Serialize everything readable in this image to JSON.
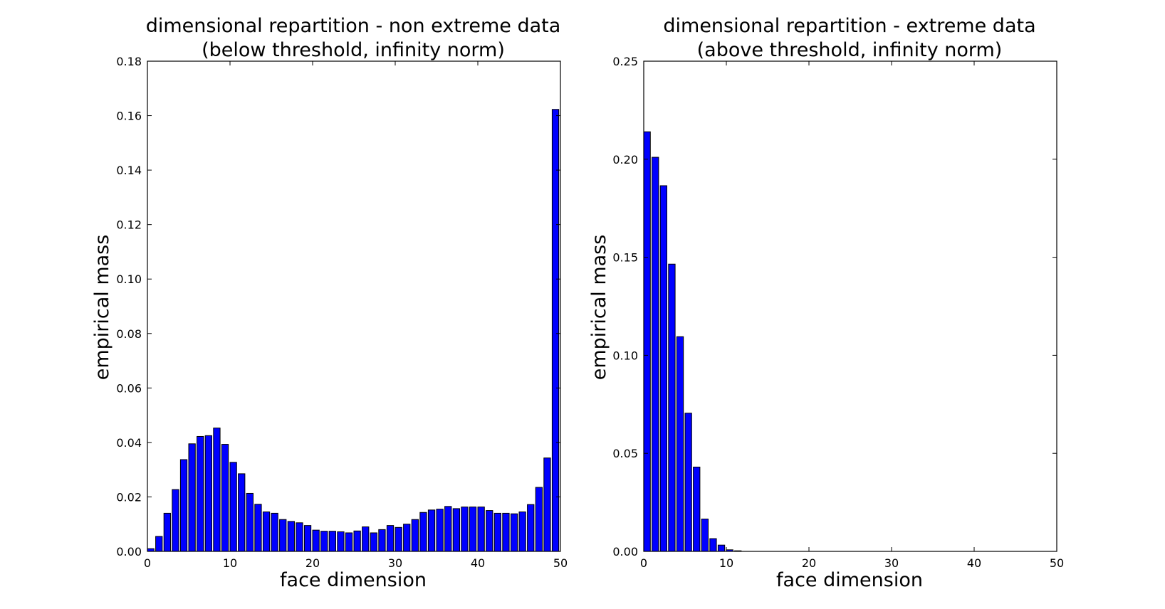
{
  "chart_data": [
    {
      "type": "bar",
      "title_line1": "dimensional repartition - non extreme data",
      "title_line2": "(below threshold, infinity norm)",
      "xlabel": "face dimension",
      "ylabel": "empirical mass",
      "xlim": [
        0,
        50
      ],
      "ylim": [
        0,
        0.18
      ],
      "xticks": [
        "0",
        "10",
        "20",
        "30",
        "40",
        "50"
      ],
      "yticks": [
        "0.00",
        "0.02",
        "0.04",
        "0.06",
        "0.08",
        "0.10",
        "0.12",
        "0.14",
        "0.16",
        "0.18"
      ],
      "bar_color": "#0000ff",
      "x": [
        0,
        1,
        2,
        3,
        4,
        5,
        6,
        7,
        8,
        9,
        10,
        11,
        12,
        13,
        14,
        15,
        16,
        17,
        18,
        19,
        20,
        21,
        22,
        23,
        24,
        25,
        26,
        27,
        28,
        29,
        30,
        31,
        32,
        33,
        34,
        35,
        36,
        37,
        38,
        39,
        40,
        41,
        42,
        43,
        44,
        45,
        46,
        47,
        48,
        49
      ],
      "values": [
        0.001,
        0.0055,
        0.014,
        0.0227,
        0.0337,
        0.0395,
        0.0422,
        0.0425,
        0.0453,
        0.0393,
        0.0327,
        0.0285,
        0.0213,
        0.0173,
        0.0145,
        0.014,
        0.0117,
        0.011,
        0.0105,
        0.0095,
        0.0078,
        0.0074,
        0.0074,
        0.0072,
        0.0068,
        0.0075,
        0.009,
        0.0068,
        0.008,
        0.0095,
        0.0088,
        0.01,
        0.0117,
        0.0143,
        0.0152,
        0.0155,
        0.0165,
        0.0157,
        0.0163,
        0.0163,
        0.0163,
        0.015,
        0.014,
        0.014,
        0.0138,
        0.0145,
        0.0172,
        0.0235,
        0.0343,
        0.1623
      ]
    },
    {
      "type": "bar",
      "title_line1": "dimensional repartition - extreme data",
      "title_line2": "(above threshold, infinity norm)",
      "xlabel": "face dimension",
      "ylabel": "empirical mass",
      "xlim": [
        0,
        50
      ],
      "ylim": [
        0,
        0.25
      ],
      "xticks": [
        "0",
        "10",
        "20",
        "30",
        "40",
        "50"
      ],
      "yticks": [
        "0.00",
        "0.05",
        "0.10",
        "0.15",
        "0.20",
        "0.25"
      ],
      "bar_color": "#0000ff",
      "x": [
        0,
        1,
        2,
        3,
        4,
        5,
        6,
        7,
        8,
        9,
        10,
        11,
        12,
        13,
        14,
        15,
        16,
        17,
        18,
        19,
        20,
        21,
        22,
        23,
        24,
        25,
        26,
        27,
        28,
        29,
        30,
        31,
        32,
        33,
        34,
        35,
        36,
        37,
        38,
        39,
        40,
        41,
        42,
        43,
        44,
        45,
        46,
        47,
        48,
        49
      ],
      "values": [
        0.214,
        0.201,
        0.1865,
        0.1465,
        0.1095,
        0.0705,
        0.043,
        0.0165,
        0.0065,
        0.0032,
        0.0008,
        0.0003,
        0,
        0,
        0,
        0,
        0,
        0,
        0,
        0,
        0,
        0,
        0,
        0,
        0,
        0,
        0,
        0,
        0,
        0,
        0,
        0,
        0,
        0,
        0,
        0,
        0,
        0,
        0,
        0,
        0,
        0,
        0,
        0,
        0,
        0,
        0,
        0,
        0,
        0
      ]
    }
  ]
}
